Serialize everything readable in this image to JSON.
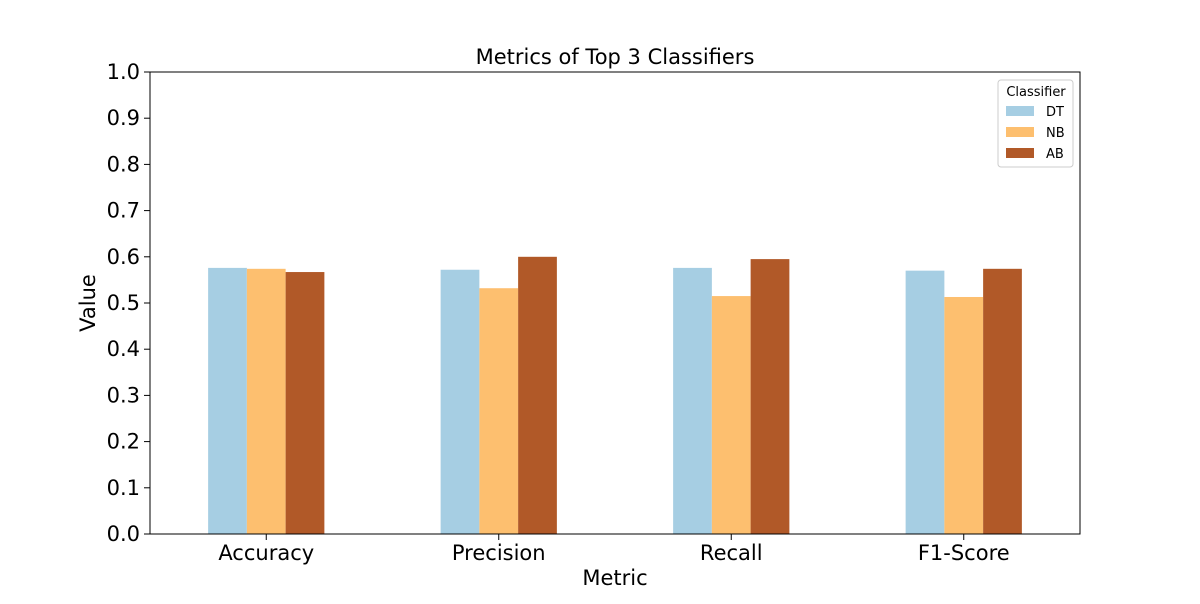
{
  "chart_data": {
    "type": "bar",
    "title": "Metrics of Top 3 Classifiers",
    "xlabel": "Metric",
    "ylabel": "Value",
    "categories": [
      "Accuracy",
      "Precision",
      "Recall",
      "F1-Score"
    ],
    "series": [
      {
        "name": "DT",
        "color": "#a6cee3",
        "values": [
          0.576,
          0.572,
          0.576,
          0.57
        ]
      },
      {
        "name": "NB",
        "color": "#fdbf6f",
        "values": [
          0.574,
          0.532,
          0.515,
          0.513
        ]
      },
      {
        "name": "AB",
        "color": "#b15928",
        "values": [
          0.567,
          0.6,
          0.595,
          0.574
        ]
      }
    ],
    "ylim": [
      0,
      1.0
    ],
    "yticks": [
      "0.0",
      "0.1",
      "0.2",
      "0.3",
      "0.4",
      "0.5",
      "0.6",
      "0.7",
      "0.8",
      "0.9",
      "1.0"
    ],
    "grid": false,
    "legend": {
      "title": "Classifier",
      "position": "top-right"
    }
  }
}
